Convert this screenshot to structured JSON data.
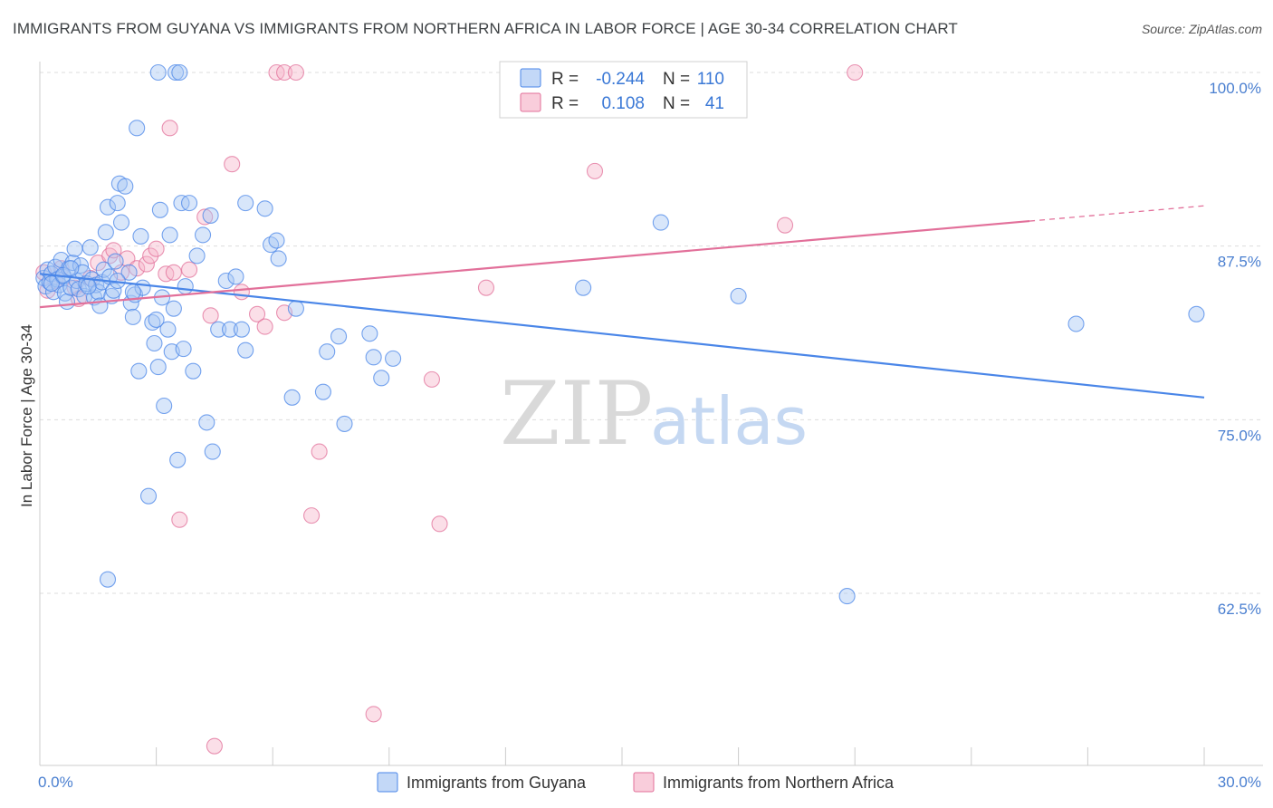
{
  "title": "IMMIGRANTS FROM GUYANA VS IMMIGRANTS FROM NORTHERN AFRICA IN LABOR FORCE | AGE 30-34 CORRELATION CHART",
  "source": "Source: ZipAtlas.com",
  "watermark": {
    "zip": "ZIP",
    "atlas": "atlas"
  },
  "colors": {
    "blue": "#4a86e8",
    "blue_fill": "#a9c8f3",
    "pink": "#e2709a",
    "pink_fill": "#f6b8cc",
    "tick": "#4a7fd0"
  },
  "chart_data": {
    "type": "scatter",
    "ylabel": "In Labor Force | Age 30-34",
    "xlim": [
      0,
      30
    ],
    "ylim": [
      51.5,
      102
    ],
    "x_tick_labels": [
      "0.0%",
      "30.0%"
    ],
    "y_ticks": [
      62.5,
      75.0,
      87.5,
      100.0
    ],
    "y_tick_labels": [
      "62.5%",
      "75.0%",
      "87.5%",
      "100.0%"
    ],
    "grid": true,
    "legend_box": {
      "rows": [
        {
          "r_label": "R =",
          "r_value": "-0.244",
          "n_label": "N =",
          "n_value": "110"
        },
        {
          "r_label": "R =",
          "r_value": "0.108",
          "n_label": "N =",
          "n_value": "41"
        }
      ]
    },
    "series": [
      {
        "name": "Immigrants from Guyana",
        "color": "#4a86e8",
        "trend": {
          "x": [
            0,
            30
          ],
          "y": [
            85.5,
            76.6
          ]
        },
        "points": [
          [
            0.1,
            85.2
          ],
          [
            0.15,
            84.6
          ],
          [
            0.2,
            85.8
          ],
          [
            0.25,
            84.9
          ],
          [
            0.3,
            85.5
          ],
          [
            0.35,
            84.2
          ],
          [
            0.4,
            86.0
          ],
          [
            0.45,
            85.1
          ],
          [
            0.5,
            84.7
          ],
          [
            0.55,
            86.5
          ],
          [
            0.6,
            85.3
          ],
          [
            0.65,
            84.1
          ],
          [
            0.7,
            83.5
          ],
          [
            0.75,
            85.9
          ],
          [
            0.8,
            84.5
          ],
          [
            0.85,
            86.3
          ],
          [
            0.9,
            87.3
          ],
          [
            0.95,
            85.0
          ],
          [
            1.0,
            84.4
          ],
          [
            1.05,
            86.1
          ],
          [
            1.1,
            85.6
          ],
          [
            1.15,
            83.9
          ],
          [
            1.2,
            84.8
          ],
          [
            1.3,
            87.4
          ],
          [
            1.35,
            85.1
          ],
          [
            1.4,
            83.8
          ],
          [
            1.45,
            84.7
          ],
          [
            1.5,
            84.2
          ],
          [
            1.55,
            83.2
          ],
          [
            1.6,
            84.9
          ],
          [
            1.65,
            85.8
          ],
          [
            1.7,
            88.5
          ],
          [
            1.75,
            90.3
          ],
          [
            1.8,
            85.3
          ],
          [
            1.85,
            83.9
          ],
          [
            1.9,
            84.3
          ],
          [
            1.95,
            86.4
          ],
          [
            2.0,
            90.6
          ],
          [
            2.05,
            92.0
          ],
          [
            2.1,
            89.2
          ],
          [
            2.2,
            91.8
          ],
          [
            2.3,
            85.6
          ],
          [
            2.35,
            83.4
          ],
          [
            2.4,
            82.4
          ],
          [
            2.45,
            84.0
          ],
          [
            2.5,
            96.0
          ],
          [
            2.55,
            78.5
          ],
          [
            2.6,
            88.2
          ],
          [
            2.65,
            84.5
          ],
          [
            2.8,
            69.5
          ],
          [
            2.9,
            82.0
          ],
          [
            2.95,
            80.5
          ],
          [
            3.0,
            82.2
          ],
          [
            3.05,
            78.8
          ],
          [
            3.1,
            90.1
          ],
          [
            3.15,
            83.8
          ],
          [
            3.2,
            76.0
          ],
          [
            3.3,
            81.5
          ],
          [
            3.35,
            88.3
          ],
          [
            3.4,
            79.9
          ],
          [
            3.45,
            83.0
          ],
          [
            3.55,
            72.1
          ],
          [
            3.65,
            90.6
          ],
          [
            3.7,
            80.1
          ],
          [
            3.75,
            84.6
          ],
          [
            3.85,
            90.6
          ],
          [
            3.95,
            78.5
          ],
          [
            4.05,
            86.8
          ],
          [
            4.2,
            88.3
          ],
          [
            4.3,
            74.8
          ],
          [
            4.4,
            89.7
          ],
          [
            4.45,
            72.7
          ],
          [
            4.6,
            81.5
          ],
          [
            4.8,
            85.0
          ],
          [
            4.9,
            81.5
          ],
          [
            5.05,
            85.3
          ],
          [
            5.2,
            81.5
          ],
          [
            5.3,
            80.0
          ],
          [
            5.3,
            90.6
          ],
          [
            5.8,
            90.2
          ],
          [
            5.95,
            87.6
          ],
          [
            6.1,
            87.9
          ],
          [
            6.15,
            86.6
          ],
          [
            6.5,
            76.6
          ],
          [
            6.6,
            83.0
          ],
          [
            7.3,
            77.0
          ],
          [
            7.4,
            79.9
          ],
          [
            7.7,
            81.0
          ],
          [
            7.85,
            74.7
          ],
          [
            8.5,
            81.2
          ],
          [
            8.6,
            79.5
          ],
          [
            8.8,
            78.0
          ],
          [
            9.1,
            79.4
          ],
          [
            1.75,
            63.5
          ],
          [
            3.05,
            100.0
          ],
          [
            3.5,
            100.0
          ],
          [
            3.6,
            100.0
          ],
          [
            2.4,
            84.2
          ],
          [
            2.0,
            85.0
          ],
          [
            14.0,
            84.5
          ],
          [
            16.0,
            89.2
          ],
          [
            18.0,
            83.9
          ],
          [
            20.8,
            62.3
          ],
          [
            26.7,
            81.9
          ],
          [
            29.8,
            82.6
          ],
          [
            0.3,
            84.8
          ],
          [
            0.6,
            85.4
          ],
          [
            1.25,
            84.6
          ],
          [
            0.8,
            85.9
          ]
        ]
      },
      {
        "name": "Immigrants from Northern Africa",
        "color": "#e2709a",
        "trend": {
          "x": [
            0,
            25.5
          ],
          "y": [
            83.1,
            89.3
          ]
        },
        "trend_dashed": {
          "x": [
            25.5,
            30
          ],
          "y": [
            89.3,
            90.4
          ]
        },
        "points": [
          [
            0.1,
            85.6
          ],
          [
            0.2,
            84.3
          ],
          [
            0.4,
            85.0
          ],
          [
            0.55,
            85.9
          ],
          [
            0.9,
            84.5
          ],
          [
            1.0,
            83.7
          ],
          [
            1.3,
            85.2
          ],
          [
            1.5,
            86.3
          ],
          [
            1.8,
            86.8
          ],
          [
            1.9,
            87.2
          ],
          [
            2.1,
            85.6
          ],
          [
            2.25,
            86.6
          ],
          [
            2.5,
            85.9
          ],
          [
            2.75,
            86.2
          ],
          [
            2.85,
            86.8
          ],
          [
            3.0,
            87.3
          ],
          [
            3.25,
            85.5
          ],
          [
            3.45,
            85.6
          ],
          [
            3.35,
            96.0
          ],
          [
            3.6,
            67.8
          ],
          [
            3.85,
            85.8
          ],
          [
            4.25,
            89.6
          ],
          [
            4.4,
            82.5
          ],
          [
            4.5,
            51.5
          ],
          [
            4.95,
            93.4
          ],
          [
            5.2,
            84.2
          ],
          [
            5.6,
            82.6
          ],
          [
            5.8,
            81.7
          ],
          [
            6.1,
            100.0
          ],
          [
            6.3,
            82.7
          ],
          [
            6.3,
            100.0
          ],
          [
            6.6,
            100.0
          ],
          [
            7.0,
            68.1
          ],
          [
            7.2,
            72.7
          ],
          [
            8.6,
            53.8
          ],
          [
            10.1,
            77.9
          ],
          [
            10.3,
            67.5
          ],
          [
            11.5,
            84.5
          ],
          [
            14.3,
            92.9
          ],
          [
            19.2,
            89.0
          ],
          [
            21.0,
            100.0
          ]
        ]
      }
    ]
  }
}
